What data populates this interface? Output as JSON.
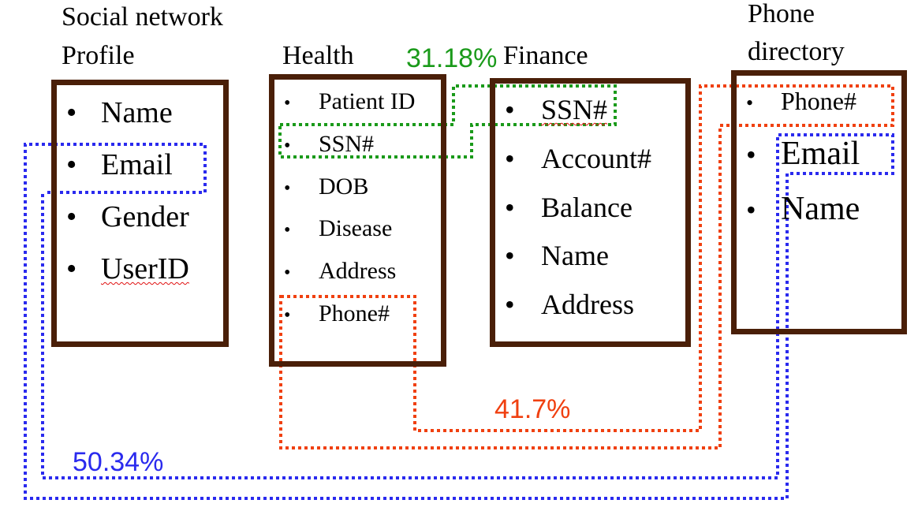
{
  "headings": {
    "social": [
      "Social network",
      "Profile"
    ],
    "health": "Health",
    "finance": "Finance",
    "phone": [
      "Phone",
      "directory"
    ]
  },
  "bullet": "•",
  "lists": {
    "social": [
      "Name",
      "Email",
      "Gender",
      "UserID"
    ],
    "health": [
      "Patient ID",
      "SSN#",
      "DOB",
      "Disease",
      "Address",
      "Phone#"
    ],
    "finance": [
      "SSN#",
      "Account#",
      "Balance",
      "Name",
      "Address"
    ],
    "phone": [
      "Phone#",
      "Email",
      "Name"
    ]
  },
  "links": {
    "ssn": {
      "label": "31.18%",
      "color": "#1a9a1a"
    },
    "phone": {
      "label": "41.7%",
      "color": "#f04010"
    },
    "email": {
      "label": "50.34%",
      "color": "#2a2aee"
    }
  },
  "colors": {
    "box_border": "#4a1f08"
  }
}
